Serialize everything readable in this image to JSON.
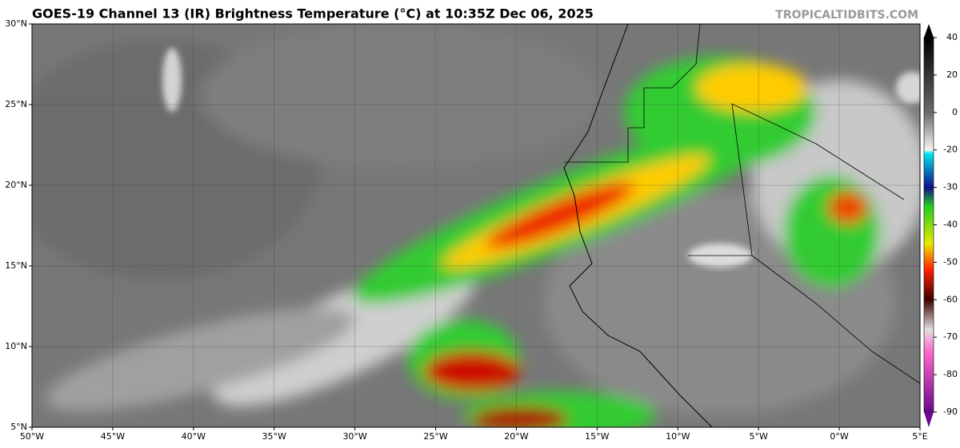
{
  "header": {
    "title": "GOES-19 Channel 13 (IR) Brightness Temperature (°C) at 10:35Z Dec 06, 2025",
    "source": "TROPICALTIDBITS.COM"
  },
  "map": {
    "xlim": [
      -50,
      5
    ],
    "ylim": [
      5,
      30
    ],
    "lon_ticks": [
      {
        "value": -50,
        "label": "50°W"
      },
      {
        "value": -45,
        "label": "45°W"
      },
      {
        "value": -40,
        "label": "40°W"
      },
      {
        "value": -35,
        "label": "35°W"
      },
      {
        "value": -30,
        "label": "30°W"
      },
      {
        "value": -25,
        "label": "25°W"
      },
      {
        "value": -20,
        "label": "20°W"
      },
      {
        "value": -15,
        "label": "15°W"
      },
      {
        "value": -10,
        "label": "10°W"
      },
      {
        "value": -5,
        "label": "5°W"
      },
      {
        "value": 0,
        "label": "0°W"
      },
      {
        "value": 5,
        "label": "5°E"
      }
    ],
    "lat_ticks": [
      {
        "value": 5,
        "label": "5°N"
      },
      {
        "value": 10,
        "label": "10°N"
      },
      {
        "value": 15,
        "label": "15°N"
      },
      {
        "value": 20,
        "label": "20°N"
      },
      {
        "value": 25,
        "label": "25°N"
      },
      {
        "value": 30,
        "label": "30°N"
      }
    ]
  },
  "colorbar": {
    "ticks": [
      40,
      20,
      0,
      -20,
      -30,
      -40,
      -50,
      -60,
      -70,
      -80,
      -90
    ]
  }
}
